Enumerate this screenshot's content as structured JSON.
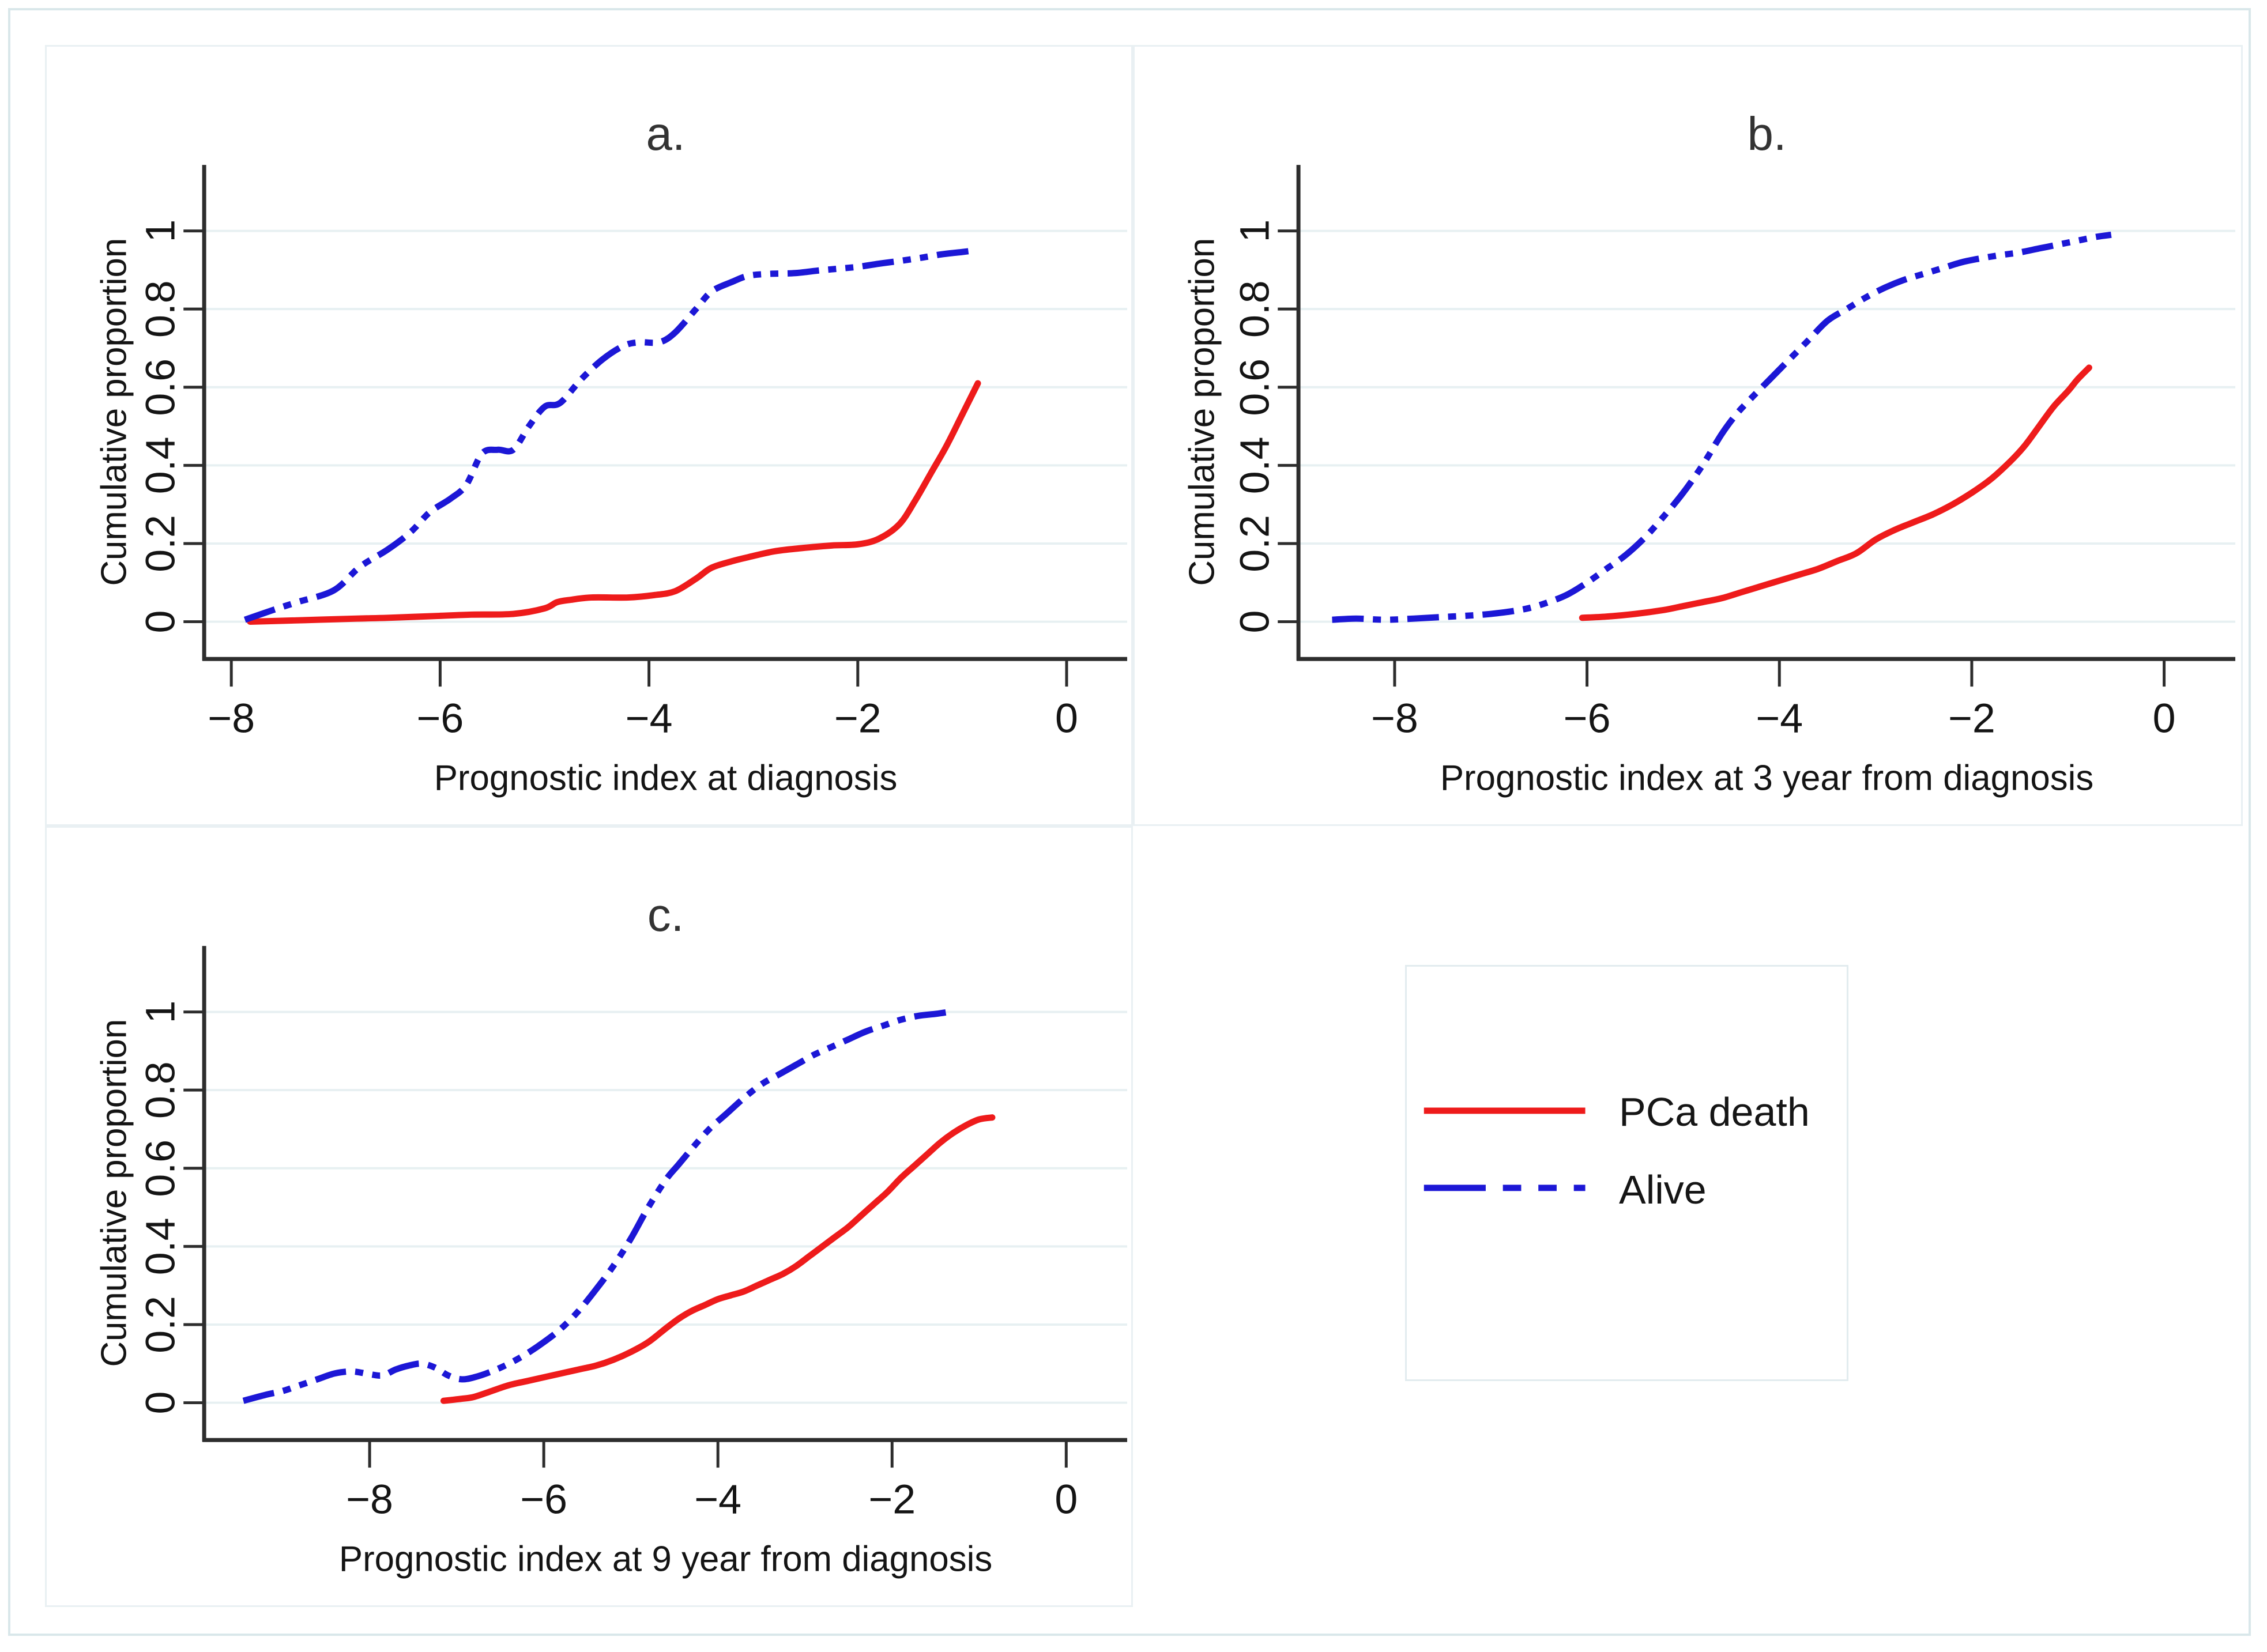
{
  "figure": {
    "background": "#ffffff",
    "outer_frame_color": "#d9e7ea",
    "panel_border_color": "#e9f0f3"
  },
  "colors": {
    "pca_death": "#ee1b1b",
    "alive": "#1c17d6",
    "grid": "#e7f0f2",
    "axis": "#2d2d2d",
    "tick_text": "#141414",
    "title_text": "#333333"
  },
  "legend": {
    "items": [
      {
        "label": "PCa death",
        "color": "#ee1b1b",
        "line_style": "solid",
        "icon": "red-solid-line-sample"
      },
      {
        "label": "Alive",
        "color": "#1c17d6",
        "line_style": "dash-dot-dot",
        "icon": "blue-dashed-line-sample"
      }
    ]
  },
  "chart_data": [
    {
      "type": "line",
      "panel_label": "a.",
      "xlabel": "Prognostic index at diagnosis",
      "ylabel": "Cumulative proportion",
      "xticks": [
        -8,
        -6,
        -4,
        -2,
        0
      ],
      "yticks": [
        0,
        0.2,
        0.4,
        0.6,
        0.8,
        1
      ],
      "ytick_labels": [
        "0",
        "0.2",
        "0.4",
        "0.6",
        "0.8",
        "1"
      ],
      "xlim": [
        -8.26,
        0.58
      ],
      "ylim": [
        -0.095,
        1.17
      ],
      "grid": "horizontal",
      "legend_position": "none",
      "series": [
        {
          "name": "PCa death",
          "style": "solid",
          "points": [
            [
              -7.82,
              0.0
            ],
            [
              -7.3,
              0.004
            ],
            [
              -6.8,
              0.008
            ],
            [
              -6.5,
              0.01
            ],
            [
              -6.0,
              0.015
            ],
            [
              -5.7,
              0.018
            ],
            [
              -5.3,
              0.02
            ],
            [
              -5.0,
              0.034
            ],
            [
              -4.88,
              0.05
            ],
            [
              -4.75,
              0.056
            ],
            [
              -4.55,
              0.062
            ],
            [
              -4.2,
              0.062
            ],
            [
              -3.95,
              0.068
            ],
            [
              -3.75,
              0.078
            ],
            [
              -3.55,
              0.11
            ],
            [
              -3.4,
              0.138
            ],
            [
              -3.2,
              0.155
            ],
            [
              -3.05,
              0.165
            ],
            [
              -2.8,
              0.18
            ],
            [
              -2.55,
              0.188
            ],
            [
              -2.25,
              0.195
            ],
            [
              -2.0,
              0.198
            ],
            [
              -1.8,
              0.212
            ],
            [
              -1.6,
              0.25
            ],
            [
              -1.45,
              0.31
            ],
            [
              -1.3,
              0.38
            ],
            [
              -1.15,
              0.45
            ],
            [
              -1.0,
              0.53
            ],
            [
              -0.85,
              0.61
            ]
          ]
        },
        {
          "name": "Alive",
          "style": "dash-dot-dot",
          "points": [
            [
              -7.87,
              0.005
            ],
            [
              -7.6,
              0.03
            ],
            [
              -7.37,
              0.05
            ],
            [
              -7.02,
              0.08
            ],
            [
              -6.77,
              0.14
            ],
            [
              -6.5,
              0.185
            ],
            [
              -6.28,
              0.23
            ],
            [
              -6.1,
              0.28
            ],
            [
              -5.9,
              0.315
            ],
            [
              -5.75,
              0.35
            ],
            [
              -5.6,
              0.43
            ],
            [
              -5.45,
              0.44
            ],
            [
              -5.3,
              0.44
            ],
            [
              -5.15,
              0.5
            ],
            [
              -5.0,
              0.55
            ],
            [
              -4.85,
              0.56
            ],
            [
              -4.65,
              0.62
            ],
            [
              -4.45,
              0.67
            ],
            [
              -4.25,
              0.705
            ],
            [
              -4.1,
              0.715
            ],
            [
              -3.9,
              0.715
            ],
            [
              -3.75,
              0.74
            ],
            [
              -3.55,
              0.8
            ],
            [
              -3.4,
              0.845
            ],
            [
              -3.2,
              0.87
            ],
            [
              -3.05,
              0.885
            ],
            [
              -2.85,
              0.89
            ],
            [
              -2.6,
              0.892
            ],
            [
              -2.4,
              0.898
            ],
            [
              -2.2,
              0.903
            ],
            [
              -2.0,
              0.908
            ],
            [
              -1.8,
              0.916
            ],
            [
              -1.6,
              0.923
            ],
            [
              -1.4,
              0.931
            ],
            [
              -1.2,
              0.94
            ],
            [
              -1.0,
              0.946
            ],
            [
              -0.88,
              0.95
            ]
          ]
        }
      ]
    },
    {
      "type": "line",
      "panel_label": "b.",
      "xlabel": "Prognostic index at 3 year from diagnosis",
      "ylabel": "Cumulative proportion",
      "xticks": [
        -8,
        -6,
        -4,
        -2,
        0
      ],
      "yticks": [
        0,
        0.2,
        0.4,
        0.6,
        0.8,
        1
      ],
      "ytick_labels": [
        "0",
        "0.2",
        "0.4",
        "0.6",
        "0.8",
        "1"
      ],
      "xlim": [
        -9.0,
        0.74
      ],
      "ylim": [
        -0.095,
        1.17
      ],
      "grid": "horizontal",
      "legend_position": "none",
      "series": [
        {
          "name": "PCa death",
          "style": "solid",
          "points": [
            [
              -6.05,
              0.01
            ],
            [
              -5.8,
              0.013
            ],
            [
              -5.5,
              0.02
            ],
            [
              -5.2,
              0.03
            ],
            [
              -5.0,
              0.04
            ],
            [
              -4.8,
              0.05
            ],
            [
              -4.6,
              0.06
            ],
            [
              -4.4,
              0.075
            ],
            [
              -4.2,
              0.09
            ],
            [
              -4.0,
              0.105
            ],
            [
              -3.8,
              0.12
            ],
            [
              -3.6,
              0.135
            ],
            [
              -3.4,
              0.155
            ],
            [
              -3.2,
              0.175
            ],
            [
              -3.0,
              0.21
            ],
            [
              -2.8,
              0.235
            ],
            [
              -2.6,
              0.255
            ],
            [
              -2.4,
              0.275
            ],
            [
              -2.2,
              0.3
            ],
            [
              -2.0,
              0.33
            ],
            [
              -1.8,
              0.365
            ],
            [
              -1.6,
              0.41
            ],
            [
              -1.45,
              0.45
            ],
            [
              -1.3,
              0.5
            ],
            [
              -1.15,
              0.55
            ],
            [
              -1.0,
              0.59
            ],
            [
              -0.9,
              0.62
            ],
            [
              -0.78,
              0.65
            ]
          ]
        },
        {
          "name": "Alive",
          "style": "dash-dot-dot",
          "points": [
            [
              -8.65,
              0.005
            ],
            [
              -8.4,
              0.008
            ],
            [
              -8.1,
              0.005
            ],
            [
              -7.8,
              0.008
            ],
            [
              -7.5,
              0.012
            ],
            [
              -7.2,
              0.016
            ],
            [
              -7.0,
              0.02
            ],
            [
              -6.8,
              0.026
            ],
            [
              -6.6,
              0.035
            ],
            [
              -6.4,
              0.05
            ],
            [
              -6.2,
              0.07
            ],
            [
              -6.0,
              0.1
            ],
            [
              -5.8,
              0.135
            ],
            [
              -5.6,
              0.17
            ],
            [
              -5.4,
              0.215
            ],
            [
              -5.2,
              0.27
            ],
            [
              -5.0,
              0.33
            ],
            [
              -4.8,
              0.4
            ],
            [
              -4.6,
              0.48
            ],
            [
              -4.45,
              0.53
            ],
            [
              -4.3,
              0.57
            ],
            [
              -4.1,
              0.62
            ],
            [
              -3.9,
              0.67
            ],
            [
              -3.7,
              0.72
            ],
            [
              -3.5,
              0.77
            ],
            [
              -3.3,
              0.8
            ],
            [
              -3.1,
              0.83
            ],
            [
              -2.9,
              0.855
            ],
            [
              -2.7,
              0.875
            ],
            [
              -2.5,
              0.89
            ],
            [
              -2.3,
              0.905
            ],
            [
              -2.1,
              0.92
            ],
            [
              -1.9,
              0.93
            ],
            [
              -1.7,
              0.938
            ],
            [
              -1.5,
              0.945
            ],
            [
              -1.3,
              0.955
            ],
            [
              -1.1,
              0.965
            ],
            [
              -0.9,
              0.975
            ],
            [
              -0.7,
              0.985
            ],
            [
              -0.55,
              0.99
            ]
          ]
        }
      ]
    },
    {
      "type": "line",
      "panel_label": "c.",
      "xlabel": "Prognostic index at 9 year from diagnosis",
      "ylabel": "Cumulative proportion",
      "xticks": [
        -8,
        -6,
        -4,
        -2,
        0
      ],
      "yticks": [
        0,
        0.2,
        0.4,
        0.6,
        0.8,
        1
      ],
      "ytick_labels": [
        "0",
        "0.2",
        "0.4",
        "0.6",
        "0.8",
        "1"
      ],
      "xlim": [
        -9.9,
        0.7
      ],
      "ylim": [
        -0.095,
        1.17
      ],
      "grid": "horizontal",
      "legend_position": "none",
      "series": [
        {
          "name": "PCa death",
          "style": "solid",
          "points": [
            [
              -7.15,
              0.005
            ],
            [
              -6.95,
              0.01
            ],
            [
              -6.8,
              0.015
            ],
            [
              -6.6,
              0.03
            ],
            [
              -6.4,
              0.045
            ],
            [
              -6.2,
              0.055
            ],
            [
              -6.0,
              0.065
            ],
            [
              -5.8,
              0.075
            ],
            [
              -5.6,
              0.085
            ],
            [
              -5.4,
              0.095
            ],
            [
              -5.2,
              0.11
            ],
            [
              -5.0,
              0.13
            ],
            [
              -4.8,
              0.155
            ],
            [
              -4.6,
              0.19
            ],
            [
              -4.45,
              0.215
            ],
            [
              -4.3,
              0.235
            ],
            [
              -4.15,
              0.25
            ],
            [
              -4.0,
              0.265
            ],
            [
              -3.85,
              0.275
            ],
            [
              -3.7,
              0.285
            ],
            [
              -3.55,
              0.3
            ],
            [
              -3.4,
              0.315
            ],
            [
              -3.25,
              0.33
            ],
            [
              -3.1,
              0.35
            ],
            [
              -2.95,
              0.375
            ],
            [
              -2.8,
              0.4
            ],
            [
              -2.65,
              0.425
            ],
            [
              -2.5,
              0.45
            ],
            [
              -2.35,
              0.48
            ],
            [
              -2.2,
              0.51
            ],
            [
              -2.05,
              0.54
            ],
            [
              -1.9,
              0.575
            ],
            [
              -1.75,
              0.605
            ],
            [
              -1.6,
              0.635
            ],
            [
              -1.45,
              0.665
            ],
            [
              -1.3,
              0.69
            ],
            [
              -1.15,
              0.71
            ],
            [
              -1.0,
              0.725
            ],
            [
              -0.85,
              0.73
            ]
          ]
        },
        {
          "name": "Alive",
          "style": "dash-dot-dot",
          "points": [
            [
              -9.45,
              0.005
            ],
            [
              -9.2,
              0.02
            ],
            [
              -9.0,
              0.03
            ],
            [
              -8.8,
              0.045
            ],
            [
              -8.6,
              0.06
            ],
            [
              -8.4,
              0.075
            ],
            [
              -8.2,
              0.08
            ],
            [
              -8.0,
              0.073
            ],
            [
              -7.85,
              0.07
            ],
            [
              -7.7,
              0.085
            ],
            [
              -7.55,
              0.095
            ],
            [
              -7.4,
              0.1
            ],
            [
              -7.25,
              0.09
            ],
            [
              -7.1,
              0.07
            ],
            [
              -6.95,
              0.06
            ],
            [
              -6.8,
              0.065
            ],
            [
              -6.6,
              0.08
            ],
            [
              -6.4,
              0.1
            ],
            [
              -6.2,
              0.125
            ],
            [
              -6.0,
              0.155
            ],
            [
              -5.8,
              0.19
            ],
            [
              -5.6,
              0.235
            ],
            [
              -5.4,
              0.29
            ],
            [
              -5.2,
              0.35
            ],
            [
              -5.0,
              0.42
            ],
            [
              -4.8,
              0.5
            ],
            [
              -4.6,
              0.57
            ],
            [
              -4.45,
              0.61
            ],
            [
              -4.3,
              0.65
            ],
            [
              -4.1,
              0.7
            ],
            [
              -3.9,
              0.74
            ],
            [
              -3.7,
              0.78
            ],
            [
              -3.5,
              0.815
            ],
            [
              -3.3,
              0.84
            ],
            [
              -3.1,
              0.865
            ],
            [
              -2.9,
              0.89
            ],
            [
              -2.7,
              0.91
            ],
            [
              -2.5,
              0.93
            ],
            [
              -2.3,
              0.95
            ],
            [
              -2.1,
              0.965
            ],
            [
              -1.9,
              0.98
            ],
            [
              -1.7,
              0.99
            ],
            [
              -1.5,
              0.995
            ],
            [
              -1.35,
              1.0
            ]
          ]
        }
      ]
    }
  ]
}
